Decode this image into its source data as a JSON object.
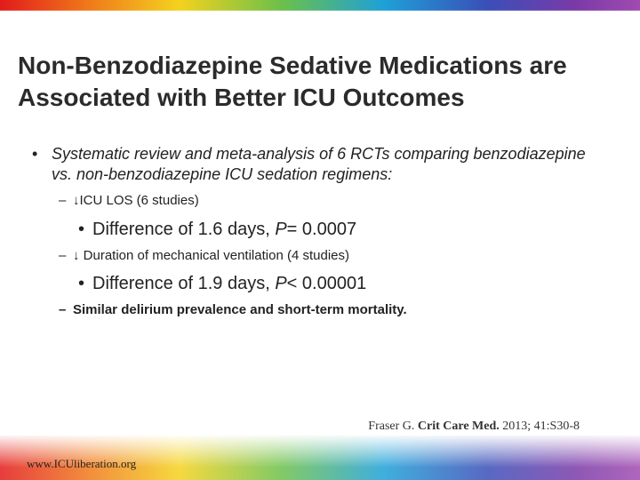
{
  "slide": {
    "title": "Non-Benzodiazepine Sedative Medications are Associated with Better ICU Outcomes",
    "bullet": "Systematic review and meta-analysis of 6 RCTs comparing benzodiazepine vs. non-benzodiazepine ICU sedation regimens:",
    "sub_items": [
      {
        "text": "↓ICU LOS (6 studies)"
      },
      {
        "detail_prefix": "Difference of 1.6 days, ",
        "detail_p": "P",
        "detail_suffix": "= 0.0007"
      },
      {
        "text": "↓ Duration of mechanical ventilation (4 studies)"
      },
      {
        "detail_prefix": "Difference of 1.9 days, ",
        "detail_p": "P",
        "detail_suffix": "< 0.00001"
      },
      {
        "text": "Similar delirium prevalence and short-term mortality."
      }
    ],
    "bullet_glyph": "•",
    "dash_glyph": "–",
    "citation": {
      "author": "Fraser G. ",
      "journal": "Crit Care Med.",
      "details": " 2013; 41:S30-8"
    },
    "footer_url": "www.ICUliberation.org"
  }
}
